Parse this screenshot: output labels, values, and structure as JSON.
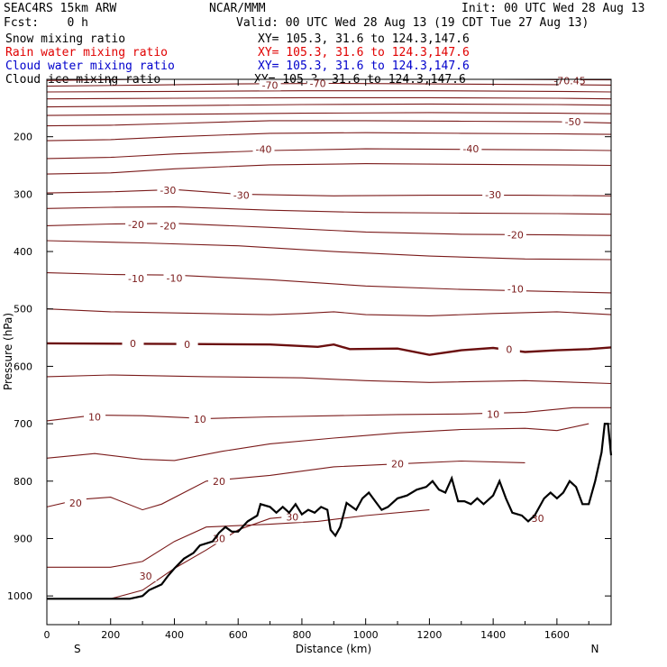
{
  "header": {
    "model": "SEAC4RS 15km ARW",
    "org": "NCAR/MMM",
    "init": "Init: 00 UTC Wed 28 Aug 13",
    "fcst": "Fcst:    0 h",
    "valid": "Valid: 00 UTC Wed 28 Aug 13 (19 CDT Tue 27 Aug 13)",
    "fields": [
      {
        "label": "Snow mixing ratio",
        "xy": "XY= 105.3, 31.6 to 124.3,147.6",
        "color": "#000000"
      },
      {
        "label": "Rain water mixing ratio",
        "xy": "XY= 105.3, 31.6 to 124.3,147.6",
        "color": "#e00000"
      },
      {
        "label": "Cloud water mixing ratio",
        "xy": "XY= 105.3, 31.6 to 124.3,147.6",
        "color": "#0000cc"
      },
      {
        "label": "Cloud ice mixing ratio",
        "xy": "XY= 105.3, 31.6 to 124.3,147.6",
        "color": "#000000"
      }
    ]
  },
  "colors": {
    "contour": "#7a1a1a",
    "zero_contour": "#6b0f0f",
    "terrain": "#000000"
  },
  "chart_data": {
    "type": "line",
    "title": "",
    "xlabel": "Distance (km)",
    "ylabel": "Pressure (hPa)",
    "xlim": [
      0,
      1770
    ],
    "ylim": [
      1050,
      100
    ],
    "y_scale": "linear",
    "x_ticks": [
      0,
      200,
      400,
      600,
      800,
      1000,
      1200,
      1400,
      1600
    ],
    "y_ticks": [
      200,
      300,
      400,
      500,
      600,
      700,
      800,
      900,
      1000
    ],
    "endpoints": {
      "left": "S",
      "right": "N"
    },
    "grid": false,
    "contour_interval": 5,
    "contours": [
      {
        "level": -75,
        "points": [
          [
            0,
            122
          ],
          [
            400,
            121
          ],
          [
            800,
            120
          ],
          [
            1200,
            120
          ],
          [
            1600,
            121
          ],
          [
            1770,
            122
          ]
        ]
      },
      {
        "level": -70,
        "points": [
          [
            0,
            112
          ],
          [
            300,
            110
          ],
          [
            600,
            108
          ],
          [
            900,
            107
          ],
          [
            1200,
            108
          ],
          [
            1500,
            109
          ],
          [
            1770,
            110
          ]
        ],
        "labels": [
          [
            700,
            110
          ],
          [
            850,
            107
          ]
        ]
      },
      {
        "level": -70.45,
        "points": [
          [
            0,
            102
          ],
          [
            300,
            100
          ],
          [
            600,
            99
          ],
          [
            1000,
            99
          ],
          [
            1400,
            100
          ],
          [
            1770,
            101
          ]
        ],
        "labels": [
          [
            1640,
            102
          ]
        ]
      },
      {
        "level": -65,
        "points": [
          [
            0,
            134
          ],
          [
            400,
            133
          ],
          [
            800,
            132
          ],
          [
            1200,
            132
          ],
          [
            1600,
            133
          ],
          [
            1770,
            134
          ]
        ]
      },
      {
        "level": -60,
        "points": [
          [
            0,
            148
          ],
          [
            400,
            146
          ],
          [
            800,
            144
          ],
          [
            1200,
            143
          ],
          [
            1600,
            144
          ],
          [
            1770,
            145
          ]
        ]
      },
      {
        "level": -55,
        "points": [
          [
            0,
            163
          ],
          [
            400,
            161
          ],
          [
            800,
            159
          ],
          [
            1200,
            158
          ],
          [
            1600,
            159
          ],
          [
            1770,
            160
          ]
        ]
      },
      {
        "level": -50,
        "points": [
          [
            0,
            181
          ],
          [
            200,
            180
          ],
          [
            400,
            177
          ],
          [
            700,
            172
          ],
          [
            1000,
            172
          ],
          [
            1300,
            173
          ],
          [
            1600,
            174
          ],
          [
            1770,
            176
          ]
        ],
        "labels": [
          [
            1650,
            174
          ]
        ]
      },
      {
        "level": -45,
        "points": [
          [
            0,
            207
          ],
          [
            200,
            205
          ],
          [
            400,
            200
          ],
          [
            700,
            194
          ],
          [
            1000,
            193
          ],
          [
            1300,
            194
          ],
          [
            1600,
            195
          ],
          [
            1770,
            196
          ]
        ]
      },
      {
        "level": -40,
        "points": [
          [
            0,
            238
          ],
          [
            200,
            236
          ],
          [
            400,
            230
          ],
          [
            700,
            224
          ],
          [
            1000,
            221
          ],
          [
            1300,
            222
          ],
          [
            1600,
            223
          ],
          [
            1770,
            224
          ]
        ],
        "labels": [
          [
            680,
            222
          ],
          [
            1330,
            221
          ]
        ]
      },
      {
        "level": -35,
        "points": [
          [
            0,
            265
          ],
          [
            200,
            263
          ],
          [
            400,
            256
          ],
          [
            700,
            249
          ],
          [
            1000,
            247
          ],
          [
            1300,
            248
          ],
          [
            1600,
            249
          ],
          [
            1770,
            250
          ]
        ]
      },
      {
        "level": -30,
        "points": [
          [
            0,
            298
          ],
          [
            200,
            296
          ],
          [
            400,
            292
          ],
          [
            600,
            300
          ],
          [
            900,
            303
          ],
          [
            1200,
            302
          ],
          [
            1500,
            302
          ],
          [
            1770,
            303
          ]
        ],
        "labels": [
          [
            380,
            293
          ],
          [
            610,
            302
          ],
          [
            1400,
            301
          ]
        ]
      },
      {
        "level": -25,
        "points": [
          [
            0,
            325
          ],
          [
            200,
            323
          ],
          [
            400,
            322
          ],
          [
            700,
            328
          ],
          [
            1000,
            332
          ],
          [
            1300,
            333
          ],
          [
            1600,
            334
          ],
          [
            1770,
            335
          ]
        ]
      },
      {
        "level": -20,
        "points": [
          [
            0,
            355
          ],
          [
            200,
            352
          ],
          [
            400,
            351
          ],
          [
            700,
            358
          ],
          [
            1000,
            366
          ],
          [
            1300,
            370
          ],
          [
            1600,
            371
          ],
          [
            1770,
            372
          ]
        ],
        "labels": [
          [
            280,
            353
          ],
          [
            380,
            355
          ],
          [
            1470,
            371
          ]
        ]
      },
      {
        "level": -15,
        "points": [
          [
            0,
            381
          ],
          [
            300,
            385
          ],
          [
            600,
            390
          ],
          [
            900,
            400
          ],
          [
            1200,
            408
          ],
          [
            1500,
            413
          ],
          [
            1770,
            414
          ]
        ]
      },
      {
        "level": -10,
        "points": [
          [
            0,
            437
          ],
          [
            200,
            440
          ],
          [
            400,
            441
          ],
          [
            700,
            449
          ],
          [
            1000,
            460
          ],
          [
            1300,
            466
          ],
          [
            1600,
            470
          ],
          [
            1770,
            472
          ]
        ],
        "labels": [
          [
            280,
            447
          ],
          [
            400,
            446
          ],
          [
            1470,
            465
          ]
        ]
      },
      {
        "level": -5,
        "points": [
          [
            0,
            500
          ],
          [
            200,
            505
          ],
          [
            500,
            508
          ],
          [
            700,
            510
          ],
          [
            800,
            508
          ],
          [
            900,
            505
          ],
          [
            1000,
            510
          ],
          [
            1200,
            512
          ],
          [
            1400,
            508
          ],
          [
            1600,
            505
          ],
          [
            1770,
            510
          ]
        ]
      },
      {
        "level": 0,
        "points": [
          [
            0,
            560
          ],
          [
            400,
            561
          ],
          [
            700,
            562
          ],
          [
            850,
            566
          ],
          [
            900,
            562
          ],
          [
            950,
            570
          ],
          [
            1100,
            569
          ],
          [
            1200,
            580
          ],
          [
            1300,
            572
          ],
          [
            1400,
            568
          ],
          [
            1500,
            575
          ],
          [
            1600,
            572
          ],
          [
            1700,
            570
          ],
          [
            1770,
            567
          ]
        ],
        "labels": [
          [
            270,
            560
          ],
          [
            440,
            562
          ],
          [
            1450,
            570
          ]
        ]
      },
      {
        "level": 5,
        "points": [
          [
            0,
            618
          ],
          [
            200,
            615
          ],
          [
            500,
            618
          ],
          [
            800,
            620
          ],
          [
            1000,
            625
          ],
          [
            1200,
            628
          ],
          [
            1500,
            625
          ],
          [
            1770,
            630
          ]
        ]
      },
      {
        "level": 10,
        "points": [
          [
            0,
            695
          ],
          [
            150,
            685
          ],
          [
            300,
            686
          ],
          [
            500,
            691
          ],
          [
            700,
            688
          ],
          [
            900,
            686
          ],
          [
            1100,
            684
          ],
          [
            1300,
            683
          ],
          [
            1500,
            680
          ],
          [
            1650,
            672
          ],
          [
            1770,
            672
          ]
        ],
        "labels": [
          [
            150,
            688
          ],
          [
            480,
            692
          ],
          [
            1400,
            683
          ]
        ]
      },
      {
        "level": 15,
        "points": [
          [
            0,
            760
          ],
          [
            150,
            752
          ],
          [
            300,
            762
          ],
          [
            400,
            764
          ],
          [
            550,
            748
          ],
          [
            700,
            735
          ],
          [
            900,
            725
          ],
          [
            1100,
            716
          ],
          [
            1300,
            710
          ],
          [
            1500,
            708
          ],
          [
            1600,
            712
          ],
          [
            1700,
            700
          ]
        ]
      },
      {
        "level": 20,
        "points": [
          [
            0,
            845
          ],
          [
            100,
            832
          ],
          [
            200,
            828
          ],
          [
            300,
            850
          ],
          [
            360,
            840
          ],
          [
            500,
            800
          ],
          [
            700,
            790
          ],
          [
            900,
            775
          ],
          [
            1100,
            770
          ],
          [
            1300,
            765
          ],
          [
            1500,
            768
          ]
        ],
        "labels": [
          [
            90,
            838
          ],
          [
            540,
            800
          ],
          [
            1100,
            770
          ]
        ]
      },
      {
        "level": 25,
        "points": [
          [
            0,
            950
          ],
          [
            200,
            950
          ],
          [
            300,
            940
          ],
          [
            400,
            905
          ],
          [
            500,
            880
          ],
          [
            700,
            875
          ],
          [
            850,
            870
          ],
          [
            1000,
            860
          ],
          [
            1200,
            850
          ]
        ]
      },
      {
        "level": 30,
        "points": [
          [
            200,
            1005
          ],
          [
            300,
            990
          ],
          [
            400,
            952
          ],
          [
            500,
            920
          ],
          [
            600,
            885
          ],
          [
            700,
            865
          ],
          [
            800,
            860
          ]
        ],
        "labels": [
          [
            310,
            965
          ],
          [
            540,
            900
          ],
          [
            770,
            862
          ],
          [
            1540,
            865
          ]
        ]
      }
    ],
    "terrain_surface": [
      [
        0,
        1005
      ],
      [
        100,
        1005
      ],
      [
        200,
        1005
      ],
      [
        260,
        1005
      ],
      [
        300,
        1000
      ],
      [
        320,
        990
      ],
      [
        360,
        980
      ],
      [
        380,
        965
      ],
      [
        400,
        952
      ],
      [
        430,
        935
      ],
      [
        460,
        925
      ],
      [
        480,
        912
      ],
      [
        520,
        905
      ],
      [
        540,
        890
      ],
      [
        560,
        880
      ],
      [
        580,
        888
      ],
      [
        600,
        888
      ],
      [
        630,
        870
      ],
      [
        660,
        860
      ],
      [
        670,
        840
      ],
      [
        700,
        845
      ],
      [
        720,
        855
      ],
      [
        740,
        845
      ],
      [
        760,
        855
      ],
      [
        780,
        840
      ],
      [
        800,
        858
      ],
      [
        820,
        850
      ],
      [
        840,
        855
      ],
      [
        860,
        845
      ],
      [
        880,
        850
      ],
      [
        890,
        885
      ],
      [
        905,
        895
      ],
      [
        920,
        880
      ],
      [
        940,
        838
      ],
      [
        970,
        850
      ],
      [
        990,
        830
      ],
      [
        1010,
        820
      ],
      [
        1030,
        835
      ],
      [
        1050,
        850
      ],
      [
        1070,
        845
      ],
      [
        1100,
        830
      ],
      [
        1130,
        825
      ],
      [
        1160,
        815
      ],
      [
        1190,
        810
      ],
      [
        1210,
        800
      ],
      [
        1230,
        815
      ],
      [
        1250,
        820
      ],
      [
        1270,
        795
      ],
      [
        1290,
        835
      ],
      [
        1310,
        835
      ],
      [
        1330,
        840
      ],
      [
        1350,
        830
      ],
      [
        1370,
        840
      ],
      [
        1400,
        825
      ],
      [
        1420,
        800
      ],
      [
        1440,
        830
      ],
      [
        1460,
        855
      ],
      [
        1490,
        860
      ],
      [
        1510,
        870
      ],
      [
        1530,
        860
      ],
      [
        1560,
        830
      ],
      [
        1580,
        820
      ],
      [
        1600,
        830
      ],
      [
        1620,
        820
      ],
      [
        1640,
        800
      ],
      [
        1660,
        810
      ],
      [
        1680,
        840
      ],
      [
        1700,
        840
      ],
      [
        1720,
        800
      ],
      [
        1740,
        750
      ],
      [
        1750,
        700
      ],
      [
        1760,
        700
      ],
      [
        1770,
        755
      ]
    ]
  }
}
